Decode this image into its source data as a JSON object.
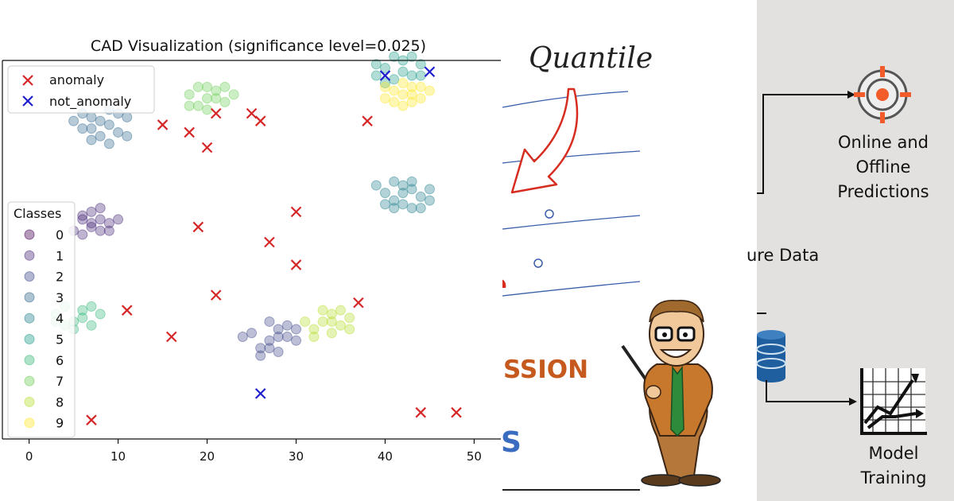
{
  "chart_data": {
    "type": "scatter",
    "title": "CAD Visualization (significance level=0.025)",
    "xlabel": "",
    "ylabel": "",
    "xlim": [
      -3,
      53
    ],
    "ylim": [
      0,
      100
    ],
    "x_ticks": [
      "0",
      "10",
      "20",
      "30",
      "40",
      "50"
    ],
    "grid": false,
    "legend_top": {
      "placement": "top-left",
      "entries": [
        {
          "label": "anomaly",
          "color": "#d62728"
        },
        {
          "label": "not_anomaly",
          "color": "#1f1fd0"
        }
      ]
    },
    "legend_classes": {
      "placement": "center-left",
      "title": "Classes",
      "entries": [
        "0",
        "1",
        "2",
        "3",
        "4",
        "5",
        "6",
        "7",
        "8",
        "9"
      ]
    },
    "class_colors": [
      "#440154",
      "#482878",
      "#3e4989",
      "#31688e",
      "#26828e",
      "#1f9e89",
      "#35b779",
      "#6ece58",
      "#b5de2b",
      "#fde725"
    ],
    "class_points": [
      {
        "class": 1,
        "points": [
          [
            6,
            58
          ],
          [
            7,
            56
          ],
          [
            8,
            58
          ],
          [
            9,
            57
          ],
          [
            7,
            60
          ],
          [
            8,
            61
          ],
          [
            5,
            55
          ],
          [
            6,
            54
          ],
          [
            9,
            55
          ],
          [
            10,
            58
          ],
          [
            7,
            57
          ],
          [
            8,
            55
          ],
          [
            6,
            59
          ]
        ]
      },
      {
        "class": 2,
        "points": [
          [
            27,
            26
          ],
          [
            28,
            29
          ],
          [
            26,
            24
          ],
          [
            29,
            27
          ],
          [
            30,
            26
          ],
          [
            28,
            23
          ],
          [
            25,
            28
          ],
          [
            27,
            31
          ],
          [
            29,
            30
          ],
          [
            24,
            27
          ],
          [
            26,
            22
          ],
          [
            28,
            27
          ],
          [
            30,
            29
          ],
          [
            27,
            24
          ]
        ]
      },
      {
        "class": 3,
        "points": [
          [
            6,
            82
          ],
          [
            7,
            85
          ],
          [
            8,
            80
          ],
          [
            9,
            83
          ],
          [
            10,
            86
          ],
          [
            6,
            86
          ],
          [
            7,
            79
          ],
          [
            9,
            78
          ],
          [
            10,
            81
          ],
          [
            8,
            84
          ],
          [
            5,
            84
          ],
          [
            11,
            80
          ],
          [
            9,
            87
          ],
          [
            11,
            85
          ],
          [
            7,
            82
          ]
        ]
      },
      {
        "class": 4,
        "points": [
          [
            40,
            65
          ],
          [
            41,
            68
          ],
          [
            42,
            62
          ],
          [
            43,
            66
          ],
          [
            44,
            64
          ],
          [
            41,
            63
          ],
          [
            42,
            67
          ],
          [
            45,
            66
          ],
          [
            40,
            62
          ],
          [
            43,
            61
          ],
          [
            39,
            67
          ],
          [
            44,
            61
          ],
          [
            42,
            65
          ],
          [
            41,
            61
          ],
          [
            45,
            63
          ],
          [
            43,
            68
          ]
        ]
      },
      {
        "class": 5,
        "points": [
          [
            40,
            98
          ],
          [
            42,
            100
          ],
          [
            43,
            96
          ],
          [
            41,
            95
          ],
          [
            44,
            99
          ],
          [
            40,
            94
          ],
          [
            42,
            97
          ],
          [
            39,
            99
          ],
          [
            43,
            101
          ],
          [
            41,
            101
          ],
          [
            39,
            96
          ],
          [
            44,
            96
          ]
        ]
      },
      {
        "class": 6,
        "points": [
          [
            3,
            33
          ],
          [
            5,
            31
          ],
          [
            4,
            35
          ],
          [
            6,
            34
          ],
          [
            7,
            30
          ],
          [
            5,
            29
          ],
          [
            3,
            31
          ],
          [
            6,
            32
          ],
          [
            8,
            33
          ],
          [
            7,
            35
          ],
          [
            4,
            30
          ]
        ]
      },
      {
        "class": 7,
        "points": [
          [
            18,
            91
          ],
          [
            20,
            90
          ],
          [
            19,
            88
          ],
          [
            21,
            92
          ],
          [
            22,
            89
          ],
          [
            19,
            93
          ],
          [
            20,
            87
          ],
          [
            22,
            93
          ],
          [
            18,
            88
          ],
          [
            21,
            90
          ],
          [
            23,
            91
          ],
          [
            20,
            93
          ]
        ]
      },
      {
        "class": 8,
        "points": [
          [
            33,
            31
          ],
          [
            35,
            30
          ],
          [
            34,
            33
          ],
          [
            36,
            32
          ],
          [
            32,
            29
          ],
          [
            34,
            28
          ],
          [
            31,
            31
          ],
          [
            33,
            34
          ],
          [
            35,
            34
          ],
          [
            36,
            29
          ],
          [
            32,
            27
          ],
          [
            34,
            31
          ]
        ]
      },
      {
        "class": 9,
        "points": [
          [
            41,
            92
          ],
          [
            42,
            94
          ],
          [
            43,
            91
          ],
          [
            44,
            93
          ],
          [
            40,
            90
          ],
          [
            41,
            89
          ],
          [
            43,
            89
          ],
          [
            45,
            92
          ],
          [
            42,
            91
          ],
          [
            44,
            90
          ],
          [
            42,
            88
          ],
          [
            40,
            93
          ],
          [
            43,
            93
          ]
        ]
      }
    ],
    "anomaly": [
      [
        7,
        5
      ],
      [
        11,
        34
      ],
      [
        15,
        83
      ],
      [
        16,
        27
      ],
      [
        18,
        81
      ],
      [
        19,
        56
      ],
      [
        20,
        77
      ],
      [
        21,
        86
      ],
      [
        21,
        38
      ],
      [
        25,
        86
      ],
      [
        26,
        84
      ],
      [
        27,
        52
      ],
      [
        30,
        60
      ],
      [
        30,
        46
      ],
      [
        37,
        36
      ],
      [
        38,
        84
      ],
      [
        44,
        7
      ],
      [
        48,
        7
      ]
    ],
    "not_anomaly": [
      [
        26,
        12
      ],
      [
        40,
        96
      ],
      [
        45,
        97
      ]
    ]
  },
  "collage_text": {
    "quantile": "Quantile",
    "ssion": "SSION",
    "s_letter": "S",
    "future_data": "ure Data",
    "online_line1": "Online and",
    "online_line2": "Offline",
    "online_line3": "Predictions",
    "model_line1": "Model",
    "model_line2": "Training"
  },
  "icons": [
    "target-icon",
    "database-icon",
    "growth-chart-icon",
    "professor-cartoon"
  ]
}
